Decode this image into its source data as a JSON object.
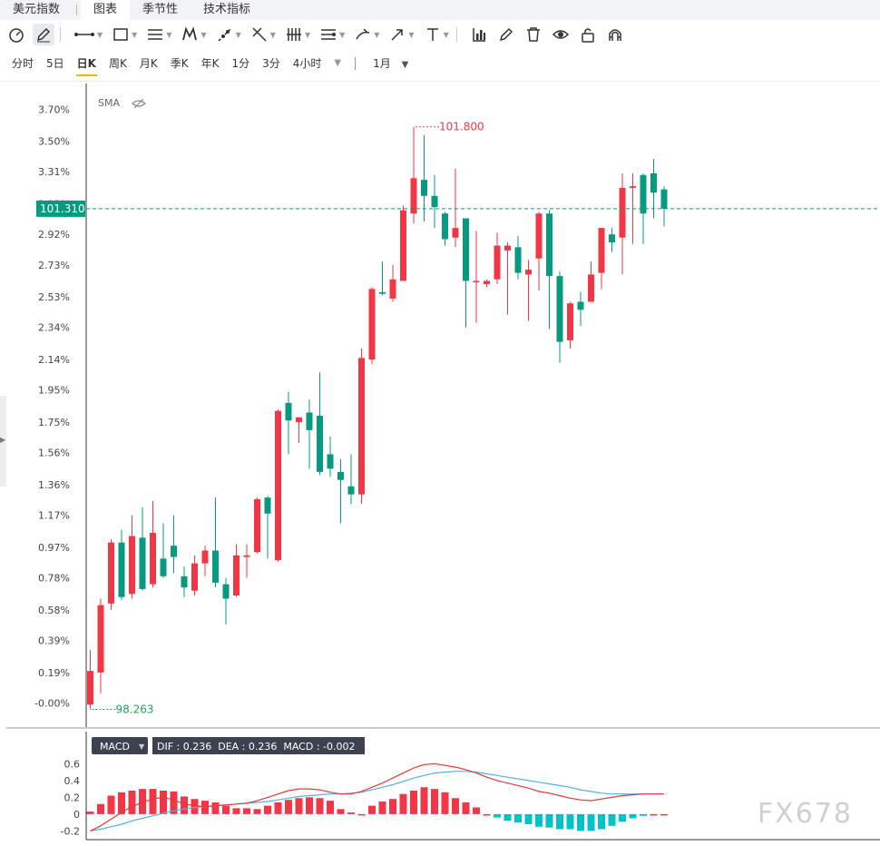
{
  "tabs": [
    "美元指数",
    "图表",
    "季节性",
    "技术指标"
  ],
  "active_tab": 1,
  "periods": [
    "分时",
    "5日",
    "日K",
    "周K",
    "月K",
    "季K",
    "年K",
    "1分",
    "3分",
    "4小时"
  ],
  "active_period": 2,
  "range_label": "1月",
  "indicator_label": "SMA",
  "macd_label": "MACD",
  "macd_readout": "DIF : 0.236  DEA : 0.236  MACD : -0.002",
  "current_price": "101.310",
  "high_label": "101.800",
  "low_label": "98.263",
  "watermark": "FX678",
  "colors": {
    "up": "#f23645",
    "down": "#089981",
    "dif": "#e53935",
    "dea": "#4fb3e8",
    "hist_up": "#f23645",
    "hist_down": "#00c2c8",
    "price_line": "#089981"
  },
  "chart_data": {
    "type": "candlestick",
    "y_axis_ticks": [
      "3.70%",
      "3.50%",
      "3.31%",
      "3.11%",
      "2.92%",
      "2.73%",
      "2.53%",
      "2.34%",
      "2.14%",
      "1.95%",
      "1.75%",
      "1.56%",
      "1.36%",
      "1.17%",
      "0.97%",
      "0.78%",
      "0.58%",
      "0.39%",
      "0.19%",
      "-0.00%"
    ],
    "ylim_pct": [
      -0.15,
      3.86
    ],
    "candles_pct": [
      [
        -0.01,
        0.2,
        0.33,
        -0.04
      ],
      [
        0.19,
        0.61,
        0.65,
        0.06
      ],
      [
        0.62,
        1.0,
        1.02,
        0.58
      ],
      [
        1.0,
        0.66,
        1.08,
        0.64
      ],
      [
        0.68,
        1.04,
        1.17,
        0.65
      ],
      [
        1.03,
        0.71,
        1.22,
        0.7
      ],
      [
        0.74,
        1.06,
        1.26,
        0.72
      ],
      [
        0.9,
        0.79,
        1.12,
        0.78
      ],
      [
        0.98,
        0.91,
        1.17,
        0.81
      ],
      [
        0.79,
        0.72,
        0.85,
        0.66
      ],
      [
        0.7,
        0.87,
        0.92,
        0.67
      ],
      [
        0.87,
        0.95,
        0.98,
        0.79
      ],
      [
        0.95,
        0.75,
        1.28,
        0.72
      ],
      [
        0.74,
        0.65,
        0.78,
        0.49
      ],
      [
        0.67,
        0.92,
        0.99,
        0.66
      ],
      [
        0.91,
        0.92,
        0.99,
        0.78
      ],
      [
        0.94,
        1.27,
        1.28,
        0.93
      ],
      [
        1.28,
        1.18,
        1.29,
        0.9
      ],
      [
        0.89,
        1.82,
        1.83,
        0.88
      ],
      [
        1.87,
        1.76,
        1.94,
        1.55
      ],
      [
        1.75,
        1.78,
        1.78,
        1.62
      ],
      [
        1.81,
        1.7,
        1.89,
        1.46
      ],
      [
        1.79,
        1.44,
        2.06,
        1.42
      ],
      [
        1.55,
        1.46,
        1.66,
        1.41
      ],
      [
        1.44,
        1.39,
        1.52,
        1.12
      ],
      [
        1.35,
        1.3,
        1.55,
        1.24
      ],
      [
        1.3,
        2.15,
        2.21,
        1.24
      ],
      [
        2.14,
        2.58,
        2.59,
        2.11
      ],
      [
        2.56,
        2.55,
        2.75,
        2.54
      ],
      [
        2.52,
        2.64,
        2.73,
        2.5
      ],
      [
        2.63,
        3.07,
        3.1,
        2.63
      ],
      [
        3.05,
        3.27,
        3.59,
        2.99
      ],
      [
        3.26,
        3.16,
        3.54,
        3.0
      ],
      [
        3.16,
        3.09,
        3.29,
        2.96
      ],
      [
        3.05,
        2.89,
        3.06,
        2.85
      ],
      [
        2.9,
        2.96,
        3.33,
        2.84
      ],
      [
        3.02,
        2.63,
        3.02,
        2.34
      ],
      [
        2.63,
        2.63,
        2.94,
        2.37
      ],
      [
        2.61,
        2.63,
        2.64,
        2.59
      ],
      [
        2.64,
        2.85,
        2.93,
        2.61
      ],
      [
        2.82,
        2.85,
        2.87,
        2.42
      ],
      [
        2.84,
        2.68,
        2.91,
        2.64
      ],
      [
        2.67,
        2.7,
        2.76,
        2.38
      ],
      [
        2.77,
        3.05,
        3.06,
        2.57
      ],
      [
        3.05,
        2.66,
        3.07,
        2.33
      ],
      [
        2.66,
        2.25,
        2.69,
        2.12
      ],
      [
        2.26,
        2.49,
        2.5,
        2.21
      ],
      [
        2.5,
        2.45,
        2.56,
        2.35
      ],
      [
        2.5,
        2.67,
        2.75,
        2.51
      ],
      [
        2.68,
        2.96,
        2.96,
        2.58
      ],
      [
        2.92,
        2.87,
        2.96,
        2.81
      ],
      [
        2.9,
        3.21,
        3.3,
        2.67
      ],
      [
        3.21,
        3.22,
        3.3,
        2.86
      ],
      [
        3.29,
        3.05,
        3.3,
        2.86
      ],
      [
        3.3,
        3.18,
        3.39,
        3.02
      ],
      [
        3.2,
        3.08,
        3.22,
        2.97
      ]
    ],
    "macd": {
      "ylim": [
        -0.25,
        0.68
      ],
      "y_axis_ticks": [
        "0.6",
        "0.4",
        "0.2",
        "0",
        "-0.2"
      ],
      "hist": [
        0.03,
        0.12,
        0.22,
        0.26,
        0.28,
        0.3,
        0.3,
        0.28,
        0.27,
        0.21,
        0.18,
        0.16,
        0.14,
        0.1,
        0.07,
        0.07,
        0.06,
        0.1,
        0.14,
        0.17,
        0.19,
        0.2,
        0.19,
        0.16,
        0.06,
        0.02,
        0.0,
        0.1,
        0.15,
        0.18,
        0.24,
        0.28,
        0.32,
        0.3,
        0.26,
        0.19,
        0.14,
        0.08,
        0.0,
        -0.04,
        -0.08,
        -0.1,
        -0.12,
        -0.15,
        -0.16,
        -0.18,
        -0.18,
        -0.2,
        -0.2,
        -0.18,
        -0.14,
        -0.09,
        -0.05,
        -0.02,
        0.0,
        0.0
      ],
      "dif": [
        -0.2,
        -0.14,
        -0.06,
        0.02,
        0.09,
        0.14,
        0.18,
        0.2,
        0.17,
        0.12,
        0.1,
        0.09,
        0.1,
        0.11,
        0.12,
        0.13,
        0.16,
        0.2,
        0.24,
        0.28,
        0.3,
        0.3,
        0.29,
        0.26,
        0.24,
        0.24,
        0.27,
        0.32,
        0.37,
        0.43,
        0.49,
        0.55,
        0.59,
        0.6,
        0.58,
        0.56,
        0.53,
        0.49,
        0.44,
        0.4,
        0.37,
        0.34,
        0.31,
        0.27,
        0.25,
        0.22,
        0.19,
        0.17,
        0.16,
        0.18,
        0.2,
        0.22,
        0.23,
        0.24,
        0.24,
        0.24
      ],
      "dea": [
        -0.2,
        -0.18,
        -0.15,
        -0.12,
        -0.08,
        -0.05,
        -0.02,
        0.01,
        0.04,
        0.06,
        0.08,
        0.09,
        0.1,
        0.11,
        0.12,
        0.13,
        0.14,
        0.15,
        0.17,
        0.19,
        0.21,
        0.22,
        0.23,
        0.24,
        0.24,
        0.25,
        0.26,
        0.29,
        0.32,
        0.35,
        0.39,
        0.43,
        0.46,
        0.49,
        0.5,
        0.51,
        0.51,
        0.5,
        0.48,
        0.46,
        0.44,
        0.42,
        0.4,
        0.38,
        0.36,
        0.34,
        0.32,
        0.29,
        0.27,
        0.25,
        0.24,
        0.24,
        0.24,
        0.24,
        0.24,
        0.24
      ]
    }
  }
}
